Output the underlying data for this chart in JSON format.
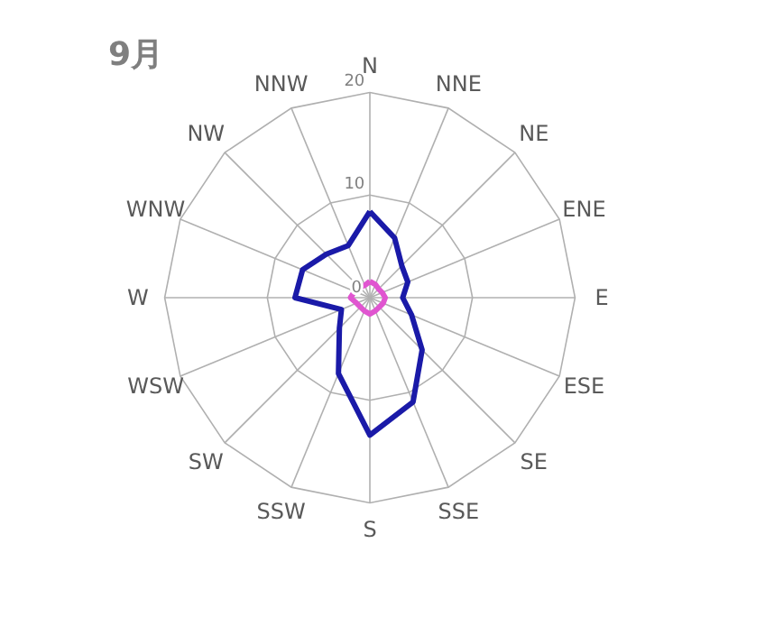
{
  "chart_data": {
    "type": "radar",
    "title": "9月",
    "categories": [
      "N",
      "NNE",
      "NE",
      "ENE",
      "E",
      "ESE",
      "SE",
      "SSE",
      "S",
      "SSW",
      "SW",
      "WSW",
      "W",
      "WNW",
      "NW",
      "NNW"
    ],
    "series": [
      {
        "color": "#1a1aa8",
        "values": [
          8.4,
          6.3,
          4.4,
          4.0,
          3.2,
          4.4,
          7.2,
          11.0,
          13.4,
          8.0,
          4.2,
          3.0,
          7.3,
          7.1,
          6.0,
          5.5
        ]
      },
      {
        "color": "#e055d0",
        "values": [
          1.6,
          1.4,
          1.2,
          1.3,
          1.5,
          1.4,
          1.3,
          1.4,
          1.6,
          1.4,
          1.3,
          1.4,
          1.9,
          1.6,
          1.4,
          1.3
        ]
      }
    ],
    "ylim": [
      0,
      20
    ],
    "yticks": [
      0,
      10,
      20
    ]
  }
}
